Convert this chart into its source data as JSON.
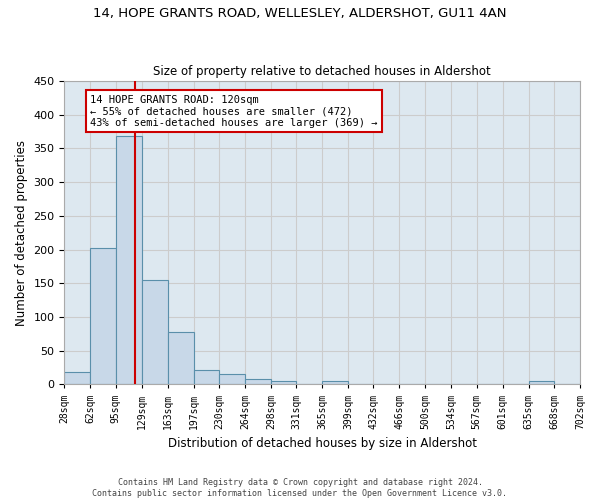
{
  "title": "14, HOPE GRANTS ROAD, WELLESLEY, ALDERSHOT, GU11 4AN",
  "subtitle": "Size of property relative to detached houses in Aldershot",
  "xlabel": "Distribution of detached houses by size in Aldershot",
  "ylabel": "Number of detached properties",
  "bin_edges": [
    28,
    62,
    95,
    129,
    163,
    197,
    230,
    264,
    298,
    331,
    365,
    399,
    432,
    466,
    500,
    534,
    567,
    601,
    635,
    668,
    702
  ],
  "bar_heights": [
    18,
    202,
    368,
    155,
    78,
    22,
    15,
    8,
    5,
    0,
    5,
    0,
    0,
    0,
    0,
    0,
    0,
    0,
    5,
    0
  ],
  "bar_color": "#c8d8e8",
  "bar_edge_color": "#5a8faa",
  "bar_edge_width": 0.8,
  "grid_color": "#cccccc",
  "bg_color": "#dde8f0",
  "fig_bg_color": "#ffffff",
  "property_size": 120,
  "red_line_color": "#cc0000",
  "annotation_line1": "14 HOPE GRANTS ROAD: 120sqm",
  "annotation_line2": "← 55% of detached houses are smaller (472)",
  "annotation_line3": "43% of semi-detached houses are larger (369) →",
  "annotation_box_color": "#ffffff",
  "annotation_box_edge": "#cc0000",
  "ylim": [
    0,
    450
  ],
  "yticks": [
    0,
    50,
    100,
    150,
    200,
    250,
    300,
    350,
    400,
    450
  ],
  "footer_line1": "Contains HM Land Registry data © Crown copyright and database right 2024.",
  "footer_line2": "Contains public sector information licensed under the Open Government Licence v3.0."
}
